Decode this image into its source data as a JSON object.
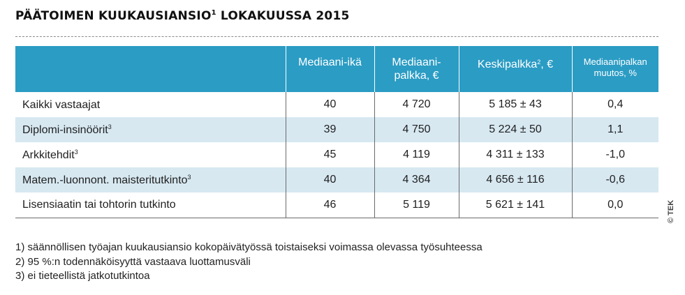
{
  "title": {
    "text": "PÄÄTOIMEN KUUKAUSIANSIO",
    "sup": "1",
    "rest": " LOKAKUUSSA 2015"
  },
  "table": {
    "headers": [
      {
        "label": "",
        "sup": ""
      },
      {
        "label": "Mediaani-ikä",
        "sup": ""
      },
      {
        "label": "Mediaani-palkka, €",
        "line1": "Mediaani-",
        "line2": "palkka, €",
        "sup": ""
      },
      {
        "label": "Keskipalkka, €",
        "pre": "Keskipalkka",
        "sup": "2",
        "post": ", €"
      },
      {
        "label": "Mediaanipalkan muutos, %",
        "line1": "Mediaanipalkan",
        "line2": "muutos, %",
        "sup": ""
      }
    ],
    "rows": [
      {
        "label": "Kaikki vastaajat",
        "sup": "",
        "median_age": "40",
        "median_salary": "4 720",
        "mean_salary": "5 185 ± 43",
        "change": "0,4"
      },
      {
        "label": "Diplomi-insinöörit",
        "sup": "3",
        "median_age": "39",
        "median_salary": "4 750",
        "mean_salary": "5 224 ± 50",
        "change": "1,1"
      },
      {
        "label": "Arkkitehdit",
        "sup": "3",
        "median_age": "45",
        "median_salary": "4 119",
        "mean_salary": "4 311 ± 133",
        "change": "-1,0"
      },
      {
        "label": "Matem.-luonnont. maisteritutkinto",
        "sup": "3",
        "median_age": "40",
        "median_salary": "4 364",
        "mean_salary": "4 656 ± 116",
        "change": "-0,6"
      },
      {
        "label": "Lisensiaatin tai tohtorin tutkinto",
        "sup": "",
        "median_age": "46",
        "median_salary": "5 119",
        "mean_salary": "5 621 ± 141",
        "change": "0,0"
      }
    ]
  },
  "footnotes": [
    "1) säännöllisen työajan kuukausiansio kokopäivätyössä toistaiseksi voimassa olevassa työsuhteessa",
    "2) 95 %:n todennäköisyyttä vastaava luottamusväli",
    "3) ei tieteellistä jatkotutkintoa"
  ],
  "copyright": "© TEK",
  "colors": {
    "header_bg": "#2b9cc4",
    "stripe_bg": "#d7e8f1",
    "header_text": "#ffffff"
  }
}
